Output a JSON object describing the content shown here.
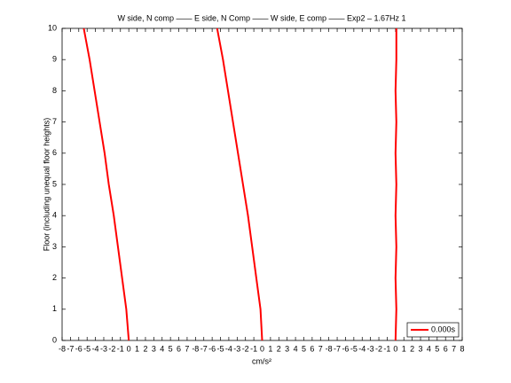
{
  "chart_data": {
    "type": "line",
    "title": "W side, N comp —— E side, N Comp —— W side, E comp —— Exp2 – 1.67Hz 1",
    "x_label": "cm/s²",
    "y_label": "Floor (including unequal floor heights)",
    "series": [
      {
        "name": "0.000s",
        "color": "#ff0000",
        "x": [
          0,
          -0.3,
          -0.8,
          -1.3,
          -1.8,
          -2.4,
          -2.9,
          -3.5,
          -4.1,
          -4.7,
          -5.4,
          null,
          16,
          15.8,
          15.3,
          14.8,
          14.3,
          13.7,
          13.1,
          12.5,
          11.9,
          11.3,
          10.6,
          null,
          32,
          32.1,
          32,
          32.1,
          32,
          32.1,
          32,
          32.1,
          32,
          32.1,
          32.1
        ],
        "values": [
          0,
          1,
          2,
          3,
          4,
          5,
          6,
          7,
          8,
          9,
          10,
          null,
          0,
          1,
          2,
          3,
          4,
          5,
          6,
          7,
          8,
          9,
          10,
          null,
          0,
          1,
          2,
          3,
          4,
          5,
          6,
          7,
          8,
          9,
          10
        ]
      }
    ],
    "xlim": [
      -8,
      40
    ],
    "xticks": [
      -8,
      -7,
      -6,
      -5,
      -4,
      -3,
      -2,
      -1,
      0,
      1,
      2,
      3,
      4,
      5,
      6,
      7,
      {
        "value": 8,
        "label": "-8"
      },
      {
        "value": 9,
        "label": "-7"
      },
      {
        "value": 10,
        "label": "-6"
      },
      {
        "value": 11,
        "label": "-5"
      },
      {
        "value": 12,
        "label": "-4"
      },
      {
        "value": 13,
        "label": "-3"
      },
      {
        "value": 14,
        "label": "-2"
      },
      {
        "value": 15,
        "label": "-1"
      },
      {
        "value": 16,
        "label": "0"
      },
      {
        "value": 17,
        "label": "1"
      },
      {
        "value": 18,
        "label": "2"
      },
      {
        "value": 19,
        "label": "3"
      },
      {
        "value": 20,
        "label": "4"
      },
      {
        "value": 21,
        "label": "5"
      },
      {
        "value": 22,
        "label": "6"
      },
      {
        "value": 23,
        "label": "7"
      },
      {
        "value": 24,
        "label": "-8"
      },
      {
        "value": 25,
        "label": "-7"
      },
      {
        "value": 26,
        "label": "-6"
      },
      {
        "value": 27,
        "label": "-5"
      },
      {
        "value": 28,
        "label": "-4"
      },
      {
        "value": 29,
        "label": "-3"
      },
      {
        "value": 30,
        "label": "-2"
      },
      {
        "value": 31,
        "label": "-1"
      },
      {
        "value": 32,
        "label": "0"
      },
      {
        "value": 33,
        "label": "1"
      },
      {
        "value": 34,
        "label": "2"
      },
      {
        "value": 35,
        "label": "3"
      },
      {
        "value": 36,
        "label": "4"
      },
      {
        "value": 37,
        "label": "5"
      },
      {
        "value": 38,
        "label": "6"
      },
      {
        "value": 39,
        "label": "7"
      },
      {
        "value": 40,
        "label": "8"
      }
    ],
    "ylim": [
      0,
      10
    ],
    "yticks": [
      0,
      1,
      2,
      3,
      4,
      5,
      6,
      7,
      8,
      9,
      10
    ],
    "legend": "southeast"
  }
}
